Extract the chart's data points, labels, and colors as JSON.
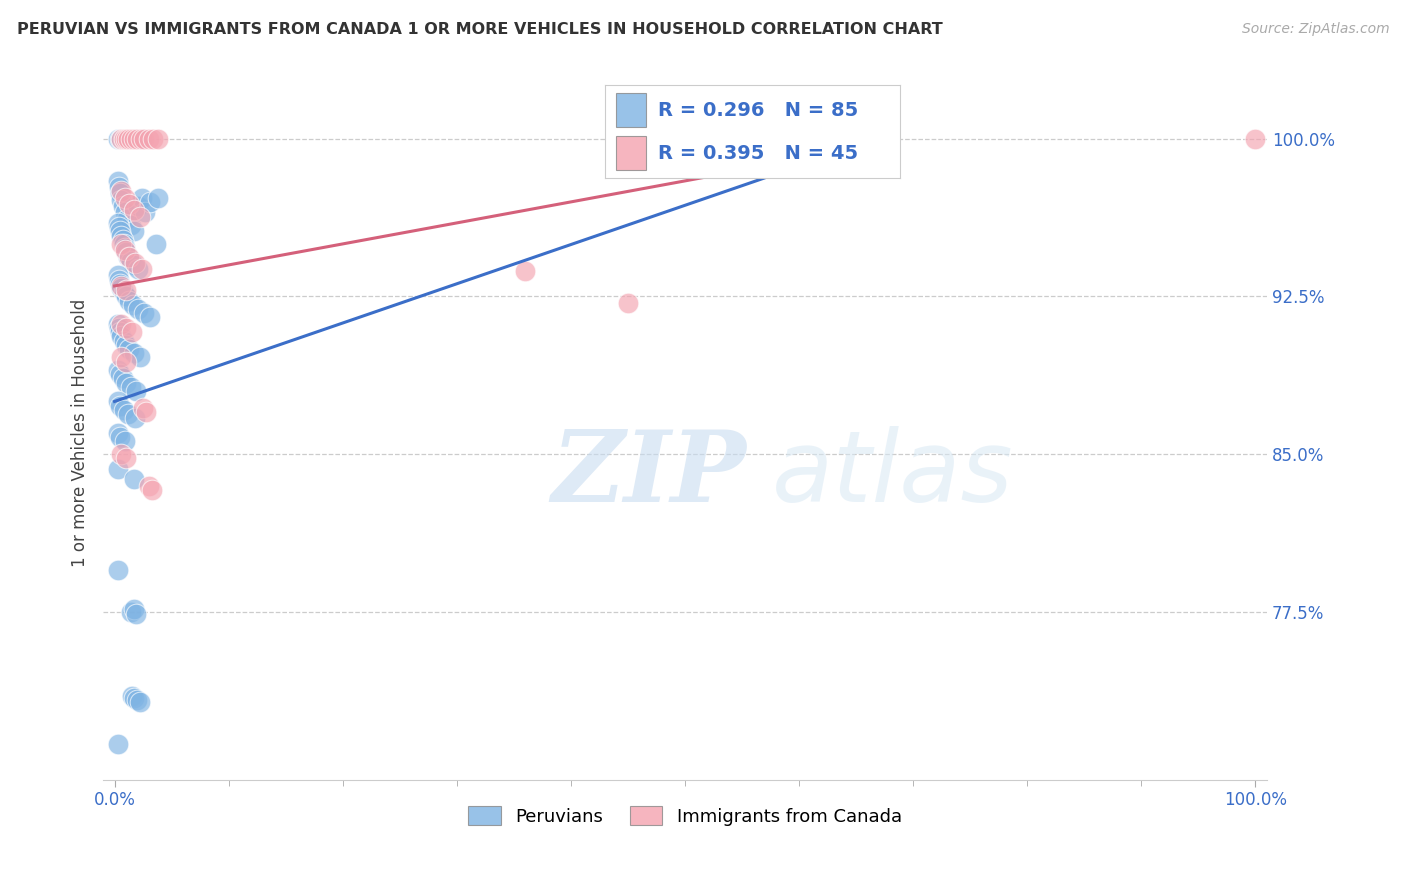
{
  "title": "PERUVIAN VS IMMIGRANTS FROM CANADA 1 OR MORE VEHICLES IN HOUSEHOLD CORRELATION CHART",
  "source": "Source: ZipAtlas.com",
  "ylabel": "1 or more Vehicles in Household",
  "ytick_labels": [
    "100.0%",
    "92.5%",
    "85.0%",
    "77.5%"
  ],
  "ytick_values": [
    1.0,
    0.925,
    0.85,
    0.775
  ],
  "legend_blue_label": "Peruvians",
  "legend_pink_label": "Immigrants from Canada",
  "R_blue": 0.296,
  "N_blue": 85,
  "R_pink": 0.395,
  "N_pink": 45,
  "blue_color": "#7EB3E3",
  "pink_color": "#F4A3B0",
  "trendline_blue": "#3B6EC8",
  "trendline_pink": "#D4607A",
  "watermark_zip": "ZIP",
  "watermark_atlas": "atlas",
  "blue_trend_x0": 0.0,
  "blue_trend_y0": 0.875,
  "blue_trend_x1": 0.68,
  "blue_trend_y1": 1.002,
  "pink_trend_x0": 0.0,
  "pink_trend_y0": 0.93,
  "pink_trend_x1": 0.68,
  "pink_trend_y1": 0.998,
  "xlim": [
    -0.01,
    1.01
  ],
  "ylim": [
    0.695,
    1.025
  ],
  "blue_points": [
    [
      0.003,
      1.0
    ],
    [
      0.005,
      1.0
    ],
    [
      0.006,
      1.0
    ],
    [
      0.007,
      1.0
    ],
    [
      0.008,
      1.0
    ],
    [
      0.009,
      1.0
    ],
    [
      0.01,
      1.0
    ],
    [
      0.011,
      1.0
    ],
    [
      0.012,
      1.0
    ],
    [
      0.013,
      1.0
    ],
    [
      0.015,
      1.0
    ],
    [
      0.017,
      1.0
    ],
    [
      0.019,
      1.0
    ],
    [
      0.021,
      1.0
    ],
    [
      0.024,
      1.0
    ],
    [
      0.003,
      0.98
    ],
    [
      0.004,
      0.977
    ],
    [
      0.005,
      0.974
    ],
    [
      0.006,
      0.971
    ],
    [
      0.007,
      0.968
    ],
    [
      0.009,
      0.965
    ],
    [
      0.011,
      0.962
    ],
    [
      0.014,
      0.959
    ],
    [
      0.017,
      0.956
    ],
    [
      0.021,
      0.968
    ],
    [
      0.024,
      0.972
    ],
    [
      0.027,
      0.965
    ],
    [
      0.031,
      0.97
    ],
    [
      0.038,
      0.972
    ],
    [
      0.003,
      0.96
    ],
    [
      0.004,
      0.958
    ],
    [
      0.005,
      0.956
    ],
    [
      0.006,
      0.954
    ],
    [
      0.007,
      0.952
    ],
    [
      0.008,
      0.95
    ],
    [
      0.009,
      0.948
    ],
    [
      0.01,
      0.946
    ],
    [
      0.012,
      0.944
    ],
    [
      0.014,
      0.942
    ],
    [
      0.017,
      0.94
    ],
    [
      0.021,
      0.938
    ],
    [
      0.003,
      0.935
    ],
    [
      0.004,
      0.933
    ],
    [
      0.005,
      0.931
    ],
    [
      0.006,
      0.929
    ],
    [
      0.008,
      0.927
    ],
    [
      0.01,
      0.925
    ],
    [
      0.013,
      0.923
    ],
    [
      0.016,
      0.921
    ],
    [
      0.021,
      0.919
    ],
    [
      0.026,
      0.917
    ],
    [
      0.031,
      0.915
    ],
    [
      0.036,
      0.95
    ],
    [
      0.003,
      0.912
    ],
    [
      0.004,
      0.91
    ],
    [
      0.005,
      0.908
    ],
    [
      0.006,
      0.906
    ],
    [
      0.008,
      0.904
    ],
    [
      0.01,
      0.902
    ],
    [
      0.013,
      0.9
    ],
    [
      0.017,
      0.898
    ],
    [
      0.022,
      0.896
    ],
    [
      0.003,
      0.89
    ],
    [
      0.005,
      0.888
    ],
    [
      0.007,
      0.886
    ],
    [
      0.01,
      0.884
    ],
    [
      0.014,
      0.882
    ],
    [
      0.019,
      0.88
    ],
    [
      0.003,
      0.875
    ],
    [
      0.005,
      0.873
    ],
    [
      0.008,
      0.871
    ],
    [
      0.012,
      0.869
    ],
    [
      0.018,
      0.867
    ],
    [
      0.003,
      0.86
    ],
    [
      0.005,
      0.858
    ],
    [
      0.009,
      0.856
    ],
    [
      0.003,
      0.843
    ],
    [
      0.017,
      0.838
    ],
    [
      0.003,
      0.795
    ],
    [
      0.014,
      0.775
    ],
    [
      0.017,
      0.776
    ],
    [
      0.019,
      0.774
    ],
    [
      0.015,
      0.735
    ],
    [
      0.017,
      0.734
    ],
    [
      0.02,
      0.733
    ],
    [
      0.022,
      0.732
    ],
    [
      0.003,
      0.712
    ],
    [
      0.65,
      1.0
    ]
  ],
  "pink_points": [
    [
      0.006,
      1.0
    ],
    [
      0.008,
      1.0
    ],
    [
      0.01,
      1.0
    ],
    [
      0.012,
      1.0
    ],
    [
      0.014,
      1.0
    ],
    [
      0.017,
      1.0
    ],
    [
      0.02,
      1.0
    ],
    [
      0.023,
      1.0
    ],
    [
      0.026,
      1.0
    ],
    [
      0.03,
      1.0
    ],
    [
      0.034,
      1.0
    ],
    [
      0.038,
      1.0
    ],
    [
      1.0,
      1.0
    ],
    [
      0.006,
      0.975
    ],
    [
      0.009,
      0.972
    ],
    [
      0.013,
      0.969
    ],
    [
      0.017,
      0.966
    ],
    [
      0.022,
      0.963
    ],
    [
      0.006,
      0.95
    ],
    [
      0.009,
      0.947
    ],
    [
      0.013,
      0.944
    ],
    [
      0.018,
      0.941
    ],
    [
      0.024,
      0.938
    ],
    [
      0.006,
      0.93
    ],
    [
      0.01,
      0.928
    ],
    [
      0.36,
      0.937
    ],
    [
      0.45,
      0.922
    ],
    [
      0.006,
      0.912
    ],
    [
      0.01,
      0.91
    ],
    [
      0.015,
      0.908
    ],
    [
      0.006,
      0.896
    ],
    [
      0.01,
      0.894
    ],
    [
      0.025,
      0.872
    ],
    [
      0.028,
      0.87
    ],
    [
      0.03,
      0.835
    ],
    [
      0.033,
      0.833
    ],
    [
      0.006,
      0.85
    ],
    [
      0.01,
      0.848
    ]
  ]
}
